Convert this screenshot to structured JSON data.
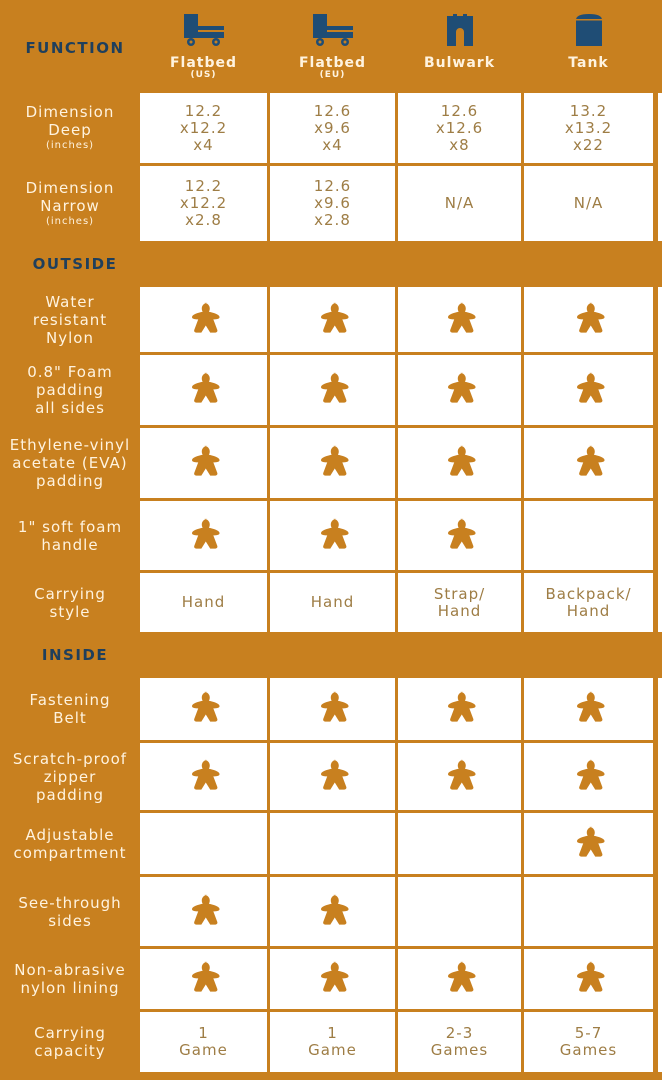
{
  "colors": {
    "background": "#c8801f",
    "header_text": "#1f3f5c",
    "label_text": "#fff3df",
    "cell_text": "#9e7d45",
    "meeple": "#c8801f"
  },
  "header": {
    "function_label": "FUNCTION"
  },
  "columns": [
    {
      "name": "Flatbed",
      "sub": "(US)",
      "icon": "flatbed-truck-icon"
    },
    {
      "name": "Flatbed",
      "sub": "(EU)",
      "icon": "flatbed-truck-icon"
    },
    {
      "name": "Bulwark",
      "sub": "",
      "icon": "bulwark-castle-icon"
    },
    {
      "name": "Tank",
      "sub": "",
      "icon": "tank-box-icon"
    }
  ],
  "sections": {
    "outside": "OUTSIDE",
    "inside": "INSIDE"
  },
  "rows": [
    {
      "label": "Dimension\nDeep",
      "note": "(inches)",
      "cells": [
        "12.2\nx12.2\nx4",
        "12.6\nx9.6\nx4",
        "12.6\nx12.6\nx8",
        "13.2\nx13.2\nx22"
      ]
    },
    {
      "label": "Dimension\nNarrow",
      "note": "(inches)",
      "cells": [
        "12.2\nx12.2\nx2.8",
        "12.6\nx9.6\nx2.8",
        "N/A",
        "N/A"
      ]
    },
    {
      "section": "outside"
    },
    {
      "label": "Water\nresistant\nNylon",
      "cells": [
        true,
        true,
        true,
        true
      ]
    },
    {
      "label": "0.8\" Foam\npadding\nall sides",
      "cells": [
        true,
        true,
        true,
        true
      ]
    },
    {
      "label": "Ethylene-vinyl\nacetate (EVA)\npadding",
      "cells": [
        true,
        true,
        true,
        true
      ]
    },
    {
      "label": "1\" soft foam\nhandle",
      "cells": [
        true,
        true,
        true,
        false
      ]
    },
    {
      "label": "Carrying\nstyle",
      "cells": [
        "Hand",
        "Hand",
        "Strap/\nHand",
        "Backpack/\nHand"
      ]
    },
    {
      "section": "inside"
    },
    {
      "label": "Fastening\nBelt",
      "cells": [
        true,
        true,
        true,
        true
      ]
    },
    {
      "label": "Scratch-proof\nzipper\npadding",
      "cells": [
        true,
        true,
        true,
        true
      ]
    },
    {
      "label": "Adjustable\ncompartment",
      "cells": [
        false,
        false,
        false,
        true
      ]
    },
    {
      "label": "See-through\nsides",
      "cells": [
        true,
        true,
        false,
        false
      ]
    },
    {
      "label": "Non-abrasive\nnylon lining",
      "cells": [
        true,
        true,
        true,
        true
      ]
    },
    {
      "label": "Carrying\ncapacity",
      "cells": [
        "1\nGame",
        "1\nGame",
        "2-3\nGames",
        "5-7\nGames"
      ]
    }
  ]
}
